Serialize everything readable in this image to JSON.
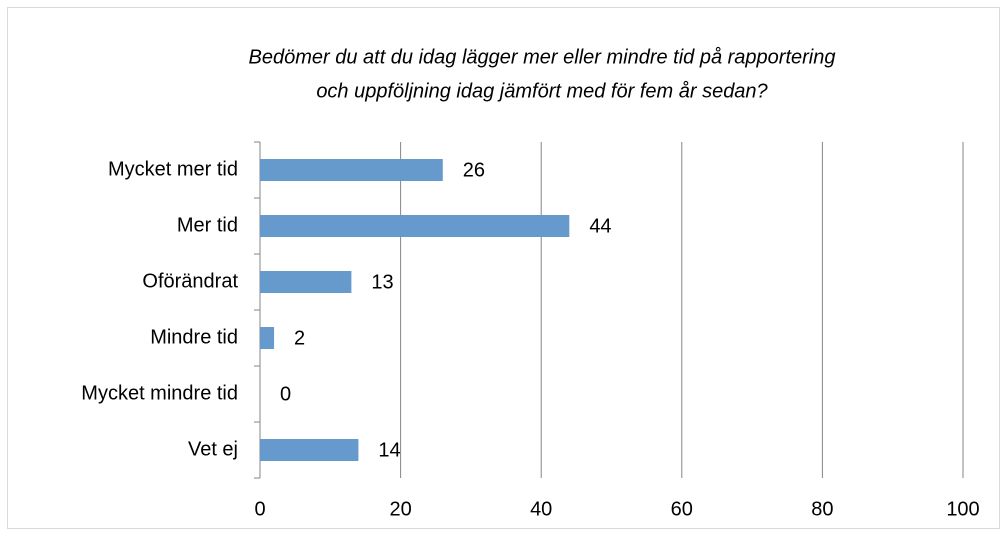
{
  "chart_data": {
    "type": "bar",
    "orientation": "horizontal",
    "title": [
      "Bedömer du att du idag lägger mer eller mindre tid på rapportering",
      "och uppföljning idag jämfört med för fem år sedan?"
    ],
    "categories": [
      "Mycket mer tid",
      "Mer tid",
      "Oförändrat",
      "Mindre tid",
      "Mycket mindre tid",
      "Vet ej"
    ],
    "values": [
      26,
      44,
      13,
      2,
      0,
      14
    ],
    "color": "#6699cc",
    "xlim": [
      0,
      100
    ],
    "xticks": [
      0,
      20,
      40,
      60,
      80,
      100
    ],
    "grid": true
  }
}
